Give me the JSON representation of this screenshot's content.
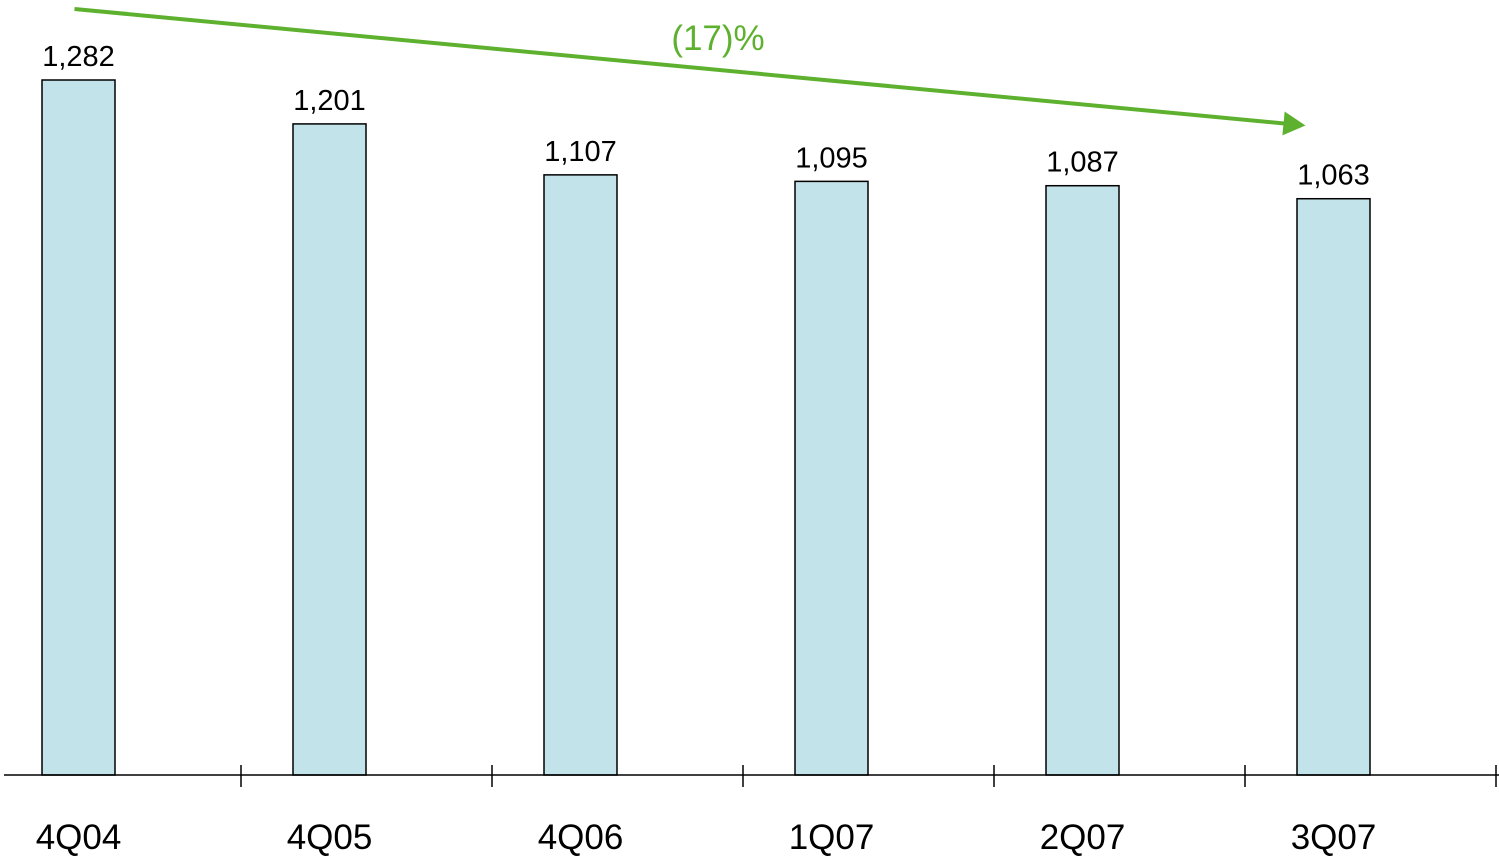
{
  "chart_data": {
    "type": "bar",
    "title": "",
    "xlabel": "",
    "ylabel": "",
    "categories": [
      "4Q04",
      "4Q05",
      "4Q06",
      "1Q07",
      "2Q07",
      "3Q07"
    ],
    "values": [
      1282,
      1201,
      1107,
      1095,
      1087,
      1063
    ],
    "value_labels": [
      "1,282",
      "1,201",
      "1,107",
      "1,095",
      "1,087",
      "1,063"
    ],
    "ylim": [
      0,
      1400
    ],
    "grid": false,
    "legend": "none",
    "annotation": {
      "text": "(17)%",
      "from_category": "4Q04",
      "to_category": "3Q07",
      "color": "#5DB12E"
    },
    "colors": {
      "bar_fill": "#C3E3EA",
      "bar_stroke": "#000000",
      "axis": "#000000"
    }
  }
}
